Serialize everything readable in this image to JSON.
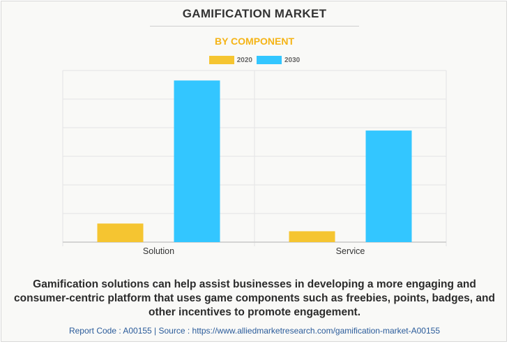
{
  "header": {
    "title": "GAMIFICATION MARKET",
    "subtitle": "BY COMPONENT"
  },
  "colors": {
    "subtitle": "#f5b416",
    "series_2020": "#f5c531",
    "series_2030": "#33c6ff",
    "grid": "#e4e4e4",
    "axis": "#c8c8c8",
    "tick_label": "#333333"
  },
  "legend": {
    "items": [
      {
        "label": "2020",
        "color": "#f5c531"
      },
      {
        "label": "2030",
        "color": "#33c6ff"
      }
    ]
  },
  "chart_data": {
    "type": "bar",
    "title": "GAMIFICATION MARKET",
    "subtitle": "BY COMPONENT",
    "categories": [
      "Solution",
      "Service"
    ],
    "series": [
      {
        "name": "2020",
        "values": [
          6.5,
          3.8
        ]
      },
      {
        "name": "2030",
        "values": [
          56.5,
          39.0
        ]
      }
    ],
    "ylim": [
      0,
      60
    ],
    "grid": true,
    "legend_position": "top-center",
    "y_tick_labels_visible": false
  },
  "footer": {
    "description": "Gamification solutions can help assist businesses in developing a more engaging and consumer-centric platform that uses game components such as freebies, points, badges, and other incentives to promote engagement.",
    "source": "Report Code : A00155  |  Source : https://www.alliedmarketresearch.com/gamification-market-A00155"
  }
}
